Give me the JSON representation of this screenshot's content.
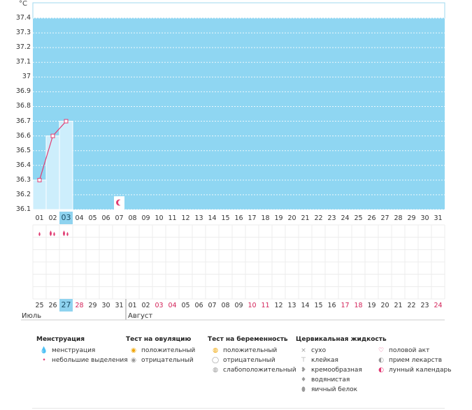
{
  "unit": "°C",
  "colors": {
    "plot_bg": "#8fd6f2",
    "bar": "#cdeefc",
    "line": "#e03c72",
    "sel": "#8fd3ef",
    "red": "#d3245a"
  },
  "chart_data": {
    "type": "line",
    "y_ticks": [
      "37.4",
      "37.3",
      "37.2",
      "37.1",
      "37",
      "36.9",
      "36.8",
      "36.7",
      "36.6",
      "36.5",
      "36.4",
      "36.3",
      "36.2",
      "36.1"
    ],
    "ylim": [
      36.1,
      37.4
    ],
    "x_cycle_days": [
      "01",
      "02",
      "03",
      "04",
      "05",
      "06",
      "07",
      "08",
      "09",
      "10",
      "11",
      "12",
      "13",
      "14",
      "15",
      "16",
      "17",
      "18",
      "19",
      "20",
      "21",
      "22",
      "23",
      "24",
      "25",
      "26",
      "27",
      "28",
      "29",
      "30",
      "31"
    ],
    "series": [
      {
        "x": [
          "01",
          "02",
          "03"
        ],
        "values": [
          36.3,
          36.6,
          36.7
        ]
      }
    ],
    "selected_day": "03",
    "moon_day": "07",
    "menstruation": [
      {
        "day": "01",
        "type": "небольшие выделения"
      },
      {
        "day": "02",
        "type": "менструация"
      },
      {
        "day": "03",
        "type": "менструация"
      }
    ]
  },
  "calendar": {
    "dates": [
      {
        "d": "25",
        "red": false
      },
      {
        "d": "26",
        "red": false
      },
      {
        "d": "27",
        "red": false,
        "sel": true
      },
      {
        "d": "28",
        "red": true
      },
      {
        "d": "29",
        "red": false
      },
      {
        "d": "30",
        "red": false
      },
      {
        "d": "31",
        "red": false
      },
      {
        "d": "01",
        "red": false
      },
      {
        "d": "02",
        "red": false
      },
      {
        "d": "03",
        "red": true
      },
      {
        "d": "04",
        "red": true
      },
      {
        "d": "05",
        "red": false
      },
      {
        "d": "06",
        "red": false
      },
      {
        "d": "07",
        "red": false
      },
      {
        "d": "08",
        "red": false
      },
      {
        "d": "09",
        "red": false
      },
      {
        "d": "10",
        "red": true
      },
      {
        "d": "11",
        "red": true
      },
      {
        "d": "12",
        "red": false
      },
      {
        "d": "13",
        "red": false
      },
      {
        "d": "14",
        "red": false
      },
      {
        "d": "15",
        "red": false
      },
      {
        "d": "16",
        "red": false
      },
      {
        "d": "17",
        "red": true
      },
      {
        "d": "18",
        "red": true
      },
      {
        "d": "19",
        "red": false
      },
      {
        "d": "20",
        "red": false
      },
      {
        "d": "21",
        "red": false
      },
      {
        "d": "22",
        "red": false
      },
      {
        "d": "23",
        "red": false
      },
      {
        "d": "24",
        "red": true
      }
    ],
    "month_1": "Июль",
    "month_2": "Август"
  },
  "legend": {
    "menstruation": {
      "title": "Менструация",
      "items": [
        "менструация",
        "небольшие выделения"
      ]
    },
    "ovulation": {
      "title": "Тест на овуляцию",
      "items": [
        "положительный",
        "отрицательный"
      ]
    },
    "pregnancy": {
      "title": "Тест на беременность",
      "items": [
        "положительный",
        "отрицательный",
        "слабоположительный"
      ]
    },
    "cervical": {
      "title": "Цервикальная жидкость",
      "items": [
        "сухо",
        "клейкая",
        "кремообразная",
        "водянистая",
        "яичный белок"
      ]
    },
    "other": {
      "items": [
        "половой акт",
        "прием лекарств",
        "лунный календарь"
      ]
    }
  }
}
